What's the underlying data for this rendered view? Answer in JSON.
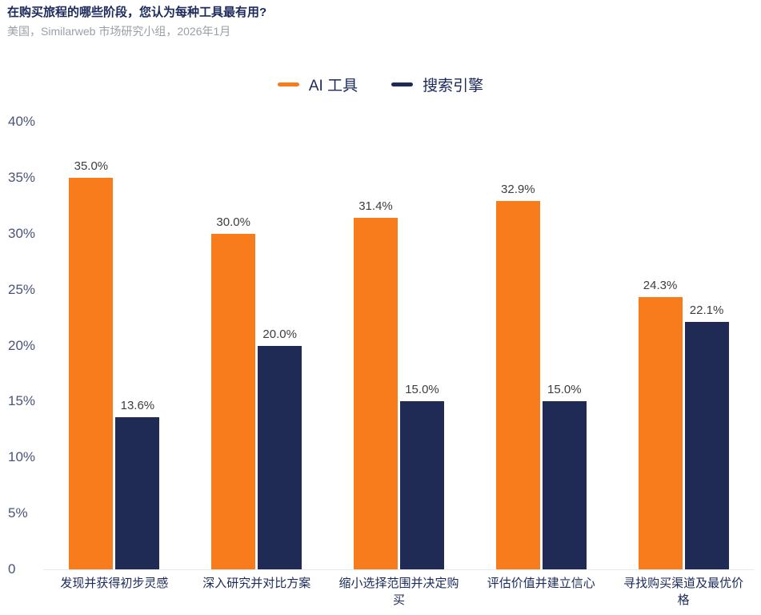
{
  "header": {
    "title": "在购买旅程的哪些阶段，您认为每种工具最有用?",
    "subtitle": "美国，Similarweb 市场研究小组，2026年1月"
  },
  "colors": {
    "ai_tools": "#f87c1b",
    "search_engine": "#1f2a55",
    "title_text": "#1b2a5b",
    "axis_text": "#4a5478",
    "value_text": "#3d3d3d"
  },
  "chart_data": {
    "type": "bar",
    "title": "在购买旅程的哪些阶段，您认为每种工具最有用?",
    "subtitle": "美国，Similarweb 市场研究小组，2026年1月",
    "categories": [
      "发现并获得初步灵感",
      "深入研究并对比方案",
      "缩小选择范围并决定购买",
      "评估价值并建立信心",
      "寻找购买渠道及最优价格"
    ],
    "series": [
      {
        "name": "AI 工具",
        "color": "#f87c1b",
        "values": [
          35.0,
          30.0,
          31.4,
          32.9,
          24.3
        ],
        "labels": [
          "35.0%",
          "30.0%",
          "31.4%",
          "32.9%",
          "24.3%"
        ]
      },
      {
        "name": "搜索引擎",
        "color": "#1f2a55",
        "values": [
          13.6,
          20.0,
          15.0,
          15.0,
          22.1
        ],
        "labels": [
          "13.6%",
          "20.0%",
          "15.0%",
          "15.0%",
          "22.1%"
        ]
      }
    ],
    "ylabel": "",
    "xlabel": "",
    "ylim": [
      0,
      40
    ],
    "y_axis": {
      "ticks": [
        "40%",
        "35%",
        "30%",
        "25%",
        "20%",
        "15%",
        "10%",
        "5%",
        "0"
      ],
      "tick_values": [
        40,
        35,
        30,
        25,
        20,
        15,
        10,
        5,
        0
      ]
    },
    "grid": false,
    "legend_position": "top-center"
  }
}
